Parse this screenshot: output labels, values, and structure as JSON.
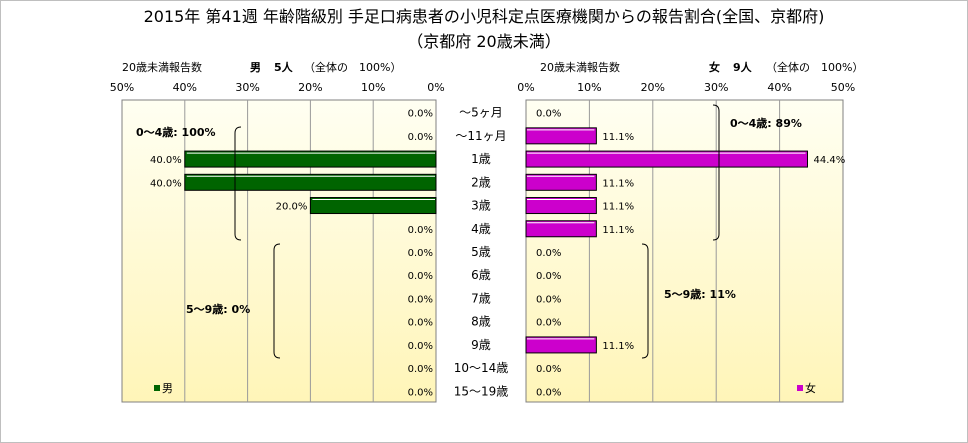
{
  "chart_data": {
    "type": "bar",
    "title": "2015年 第41週 年齢階級別 手足口病患者の小児科定点医療機関からの報告割合(全国、京都府)",
    "subtitle": "（京都府 20歳未満）",
    "categories": [
      "～5ヶ月",
      "～11ヶ月",
      "1歳",
      "2歳",
      "3歳",
      "4歳",
      "5歳",
      "6歳",
      "7歳",
      "8歳",
      "9歳",
      "10～14歳",
      "15～19歳"
    ],
    "xlim": [
      0,
      50
    ],
    "ticks": [
      "50%",
      "40%",
      "30%",
      "20%",
      "10%",
      "0%"
    ],
    "ticks_right": [
      "0%",
      "10%",
      "20%",
      "30%",
      "40%",
      "50%"
    ],
    "male": {
      "header_label": "20歳未満報告数",
      "header_sex": "男",
      "header_count": "5人",
      "header_total": "（全体の　100%）",
      "legend": "男",
      "color": "#006400",
      "values": [
        0,
        0,
        40,
        40,
        20,
        0,
        0,
        0,
        0,
        0,
        0,
        0,
        0
      ],
      "labels": [
        "0.0%",
        "0.0%",
        "40.0%",
        "40.0%",
        "20.0%",
        "0.0%",
        "0.0%",
        "0.0%",
        "0.0%",
        "0.0%",
        "0.0%",
        "0.0%",
        "0.0%"
      ],
      "group_annotations": [
        "0～4歳: 100%",
        "5～9歳: 0%"
      ]
    },
    "female": {
      "header_label": "20歳未満報告数",
      "header_sex": "女",
      "header_count": "9人",
      "header_total": "（全体の　100%）",
      "legend": "女",
      "color": "#cc00cc",
      "values": [
        0,
        11.1,
        44.4,
        11.1,
        11.1,
        11.1,
        0,
        0,
        0,
        0,
        11.1,
        0,
        0
      ],
      "labels": [
        "0.0%",
        "11.1%",
        "44.4%",
        "11.1%",
        "11.1%",
        "11.1%",
        "0.0%",
        "0.0%",
        "0.0%",
        "0.0%",
        "11.1%",
        "0.0%",
        "0.0%"
      ],
      "group_annotations": [
        "0～4歳: 89%",
        "5～9歳: 11%"
      ]
    },
    "plot_bg": [
      "#fffff2",
      "#fff5b8"
    ],
    "grid": true
  }
}
